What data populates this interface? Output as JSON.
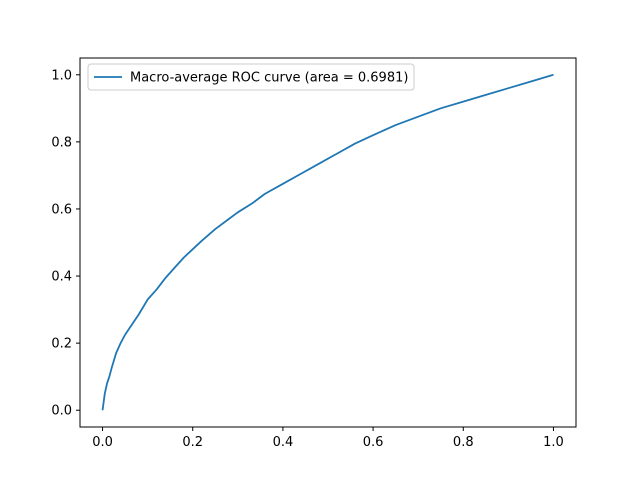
{
  "chart_data": {
    "type": "line",
    "title": "",
    "xlabel": "",
    "ylabel": "",
    "xlim": [
      -0.05,
      1.05
    ],
    "ylim": [
      -0.05,
      1.05
    ],
    "xticks": [
      0.0,
      0.2,
      0.4,
      0.6,
      0.8,
      1.0
    ],
    "yticks": [
      0.0,
      0.2,
      0.4,
      0.6,
      0.8,
      1.0
    ],
    "xtick_labels": [
      "0.0",
      "0.2",
      "0.4",
      "0.6",
      "0.8",
      "1.0"
    ],
    "ytick_labels": [
      "0.0",
      "0.2",
      "0.4",
      "0.6",
      "0.8",
      "1.0"
    ],
    "grid": false,
    "legend": {
      "location": "upper left",
      "entries": [
        "Macro-average ROC curve (area = 0.6981)"
      ]
    },
    "series": [
      {
        "name": "Macro-average ROC curve (area = 0.6981)",
        "color": "#1f77b4",
        "x": [
          0.0,
          0.002,
          0.005,
          0.01,
          0.015,
          0.02,
          0.03,
          0.04,
          0.05,
          0.06,
          0.08,
          0.1,
          0.12,
          0.14,
          0.16,
          0.18,
          0.2,
          0.22,
          0.25,
          0.28,
          0.3,
          0.33,
          0.36,
          0.4,
          0.44,
          0.48,
          0.52,
          0.56,
          0.6,
          0.65,
          0.7,
          0.75,
          0.8,
          0.85,
          0.9,
          0.95,
          1.0
        ],
        "y": [
          0.0,
          0.02,
          0.05,
          0.08,
          0.1,
          0.125,
          0.17,
          0.2,
          0.225,
          0.245,
          0.285,
          0.33,
          0.36,
          0.395,
          0.425,
          0.455,
          0.48,
          0.505,
          0.54,
          0.57,
          0.59,
          0.615,
          0.645,
          0.675,
          0.705,
          0.735,
          0.765,
          0.795,
          0.82,
          0.85,
          0.875,
          0.9,
          0.92,
          0.94,
          0.96,
          0.98,
          1.0
        ]
      }
    ]
  }
}
